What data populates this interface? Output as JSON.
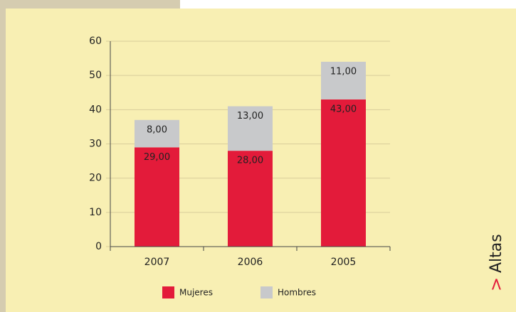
{
  "chart_data": {
    "type": "stacked_bar",
    "categories": [
      "2007",
      "2006",
      "2005"
    ],
    "series": [
      {
        "name": "Mujeres",
        "color": "#e31b3a",
        "values": [
          29,
          28,
          43
        ],
        "value_labels": [
          "29,00",
          "28,00",
          "43,00"
        ]
      },
      {
        "name": "Hombres",
        "color": "#c8c9cb",
        "values": [
          8,
          13,
          11
        ],
        "value_labels": [
          "8,00",
          "13,00",
          "11,00"
        ]
      }
    ],
    "ylim": [
      0,
      60
    ],
    "yticks": [
      0,
      10,
      20,
      30,
      40,
      50,
      60
    ],
    "grid": true,
    "section_marker": ">",
    "section_label": "Altas"
  }
}
